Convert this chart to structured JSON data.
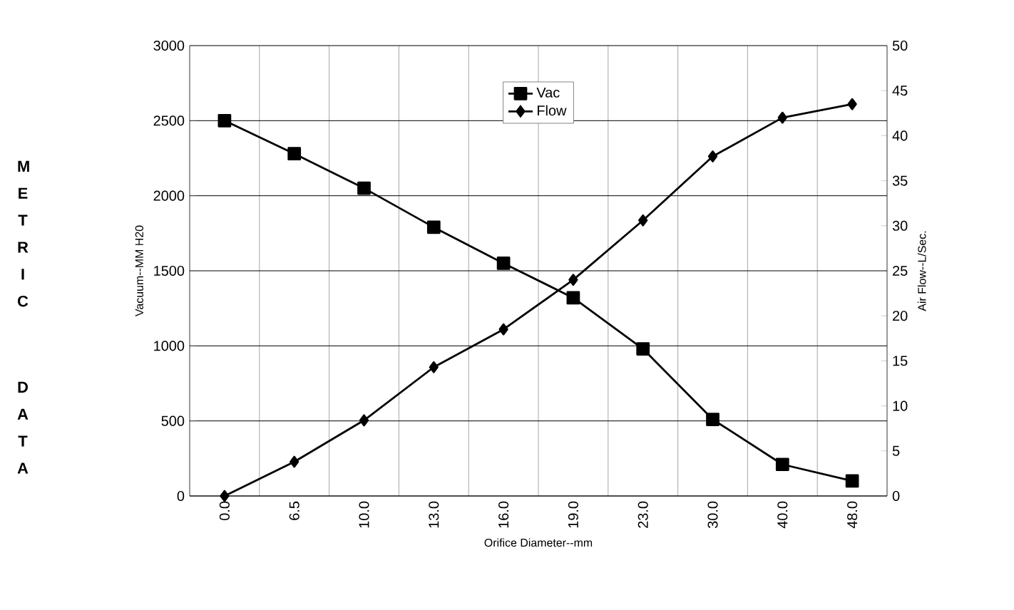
{
  "chart_data": {
    "type": "line",
    "xlabel": "Orifice Diameter--mm",
    "ylabel": "Vacuum--MM H20",
    "y2label": "Air Flow--L/Sec.",
    "categories": [
      "0.0",
      "6.5",
      "10.0",
      "13.0",
      "16.0",
      "19.0",
      "23.0",
      "30.0",
      "40.0",
      "48.0"
    ],
    "series": [
      {
        "name": "Vac",
        "color": "#000000",
        "marker": "square",
        "values": [
          2500,
          2280,
          2050,
          1790,
          1550,
          1320,
          980,
          510,
          210,
          100
        ]
      },
      {
        "name": "Flow",
        "color": "#000000",
        "marker": "diamond",
        "axis": "y2",
        "values": [
          0,
          3.8,
          8.4,
          14.3,
          18.5,
          24.0,
          30.6,
          37.7,
          42.0,
          43.5
        ]
      }
    ],
    "ylim": [
      0,
      3000
    ],
    "yticks": [
      0,
      500,
      1000,
      1500,
      2000,
      2500,
      3000
    ],
    "y2lim": [
      0,
      50
    ],
    "y2ticks": [
      0,
      5,
      10,
      15,
      20,
      25,
      30,
      35,
      40,
      45,
      50
    ],
    "grid": true,
    "legend": "top",
    "line_style": "solid",
    "annotations": [
      "METRIC",
      "DATA"
    ]
  }
}
